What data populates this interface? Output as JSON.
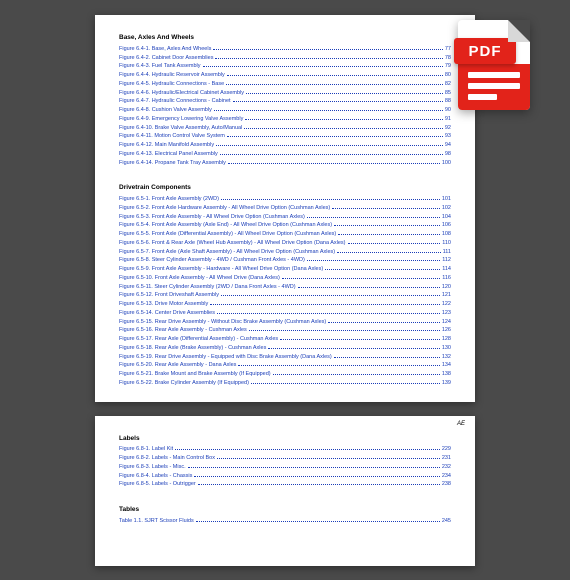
{
  "icon": {
    "label": "PDF"
  },
  "page1": {
    "sections": [
      {
        "heading": "Base, Axles And Wheels",
        "entries": [
          {
            "label": "Figure 6.4-1.  Base, Axles And Wheels",
            "page": "77"
          },
          {
            "label": "Figure 6.4-2.  Cabinet Door Assemblies",
            "page": "78"
          },
          {
            "label": "Figure 6.4-3.  Fuel Tank Assembly",
            "page": "79"
          },
          {
            "label": "Figure 6.4-4.  Hydraulic Reservoir Assembly",
            "page": "80"
          },
          {
            "label": "Figure 6.4-5.  Hydraulic Connections - Base",
            "page": "82"
          },
          {
            "label": "Figure 6.4-6.  Hydraulic/Electrical Cabinet Assembly",
            "page": "85"
          },
          {
            "label": "Figure 6.4-7.  Hydraulic Connections - Cabinet",
            "page": "88"
          },
          {
            "label": "Figure 6.4-8.  Cushion Valve Assembly",
            "page": "90"
          },
          {
            "label": "Figure 6.4-9.  Emergency Lowering Valve Assembly",
            "page": "91"
          },
          {
            "label": "Figure 6.4-10.  Brake Valve Assembly, Auto/Manual",
            "page": "92"
          },
          {
            "label": "Figure 6.4-11.  Motion Control Valve System",
            "page": "93"
          },
          {
            "label": "Figure 6.4-12.  Main Manifold Assembly",
            "page": "94"
          },
          {
            "label": "Figure 6.4-13.  Electrical Panel Assembly",
            "page": "98"
          },
          {
            "label": "Figure 6.4-14.  Propane Tank Tray Assembly",
            "page": "100"
          }
        ]
      },
      {
        "heading": "Drivetrain Components",
        "entries": [
          {
            "label": "Figure 6.5-1.  Front Axle Assembly (2WD)",
            "page": "101"
          },
          {
            "label": "Figure 6.5-2.  Front Axle Hardware Assembly - All Wheel Drive Option  (Cushman Axles)",
            "page": "102"
          },
          {
            "label": "Figure 6.5-3.  Front Axle Assembly - All Wheel Drive Option  (Cushman Axles)",
            "page": "104"
          },
          {
            "label": "Figure 6.5-4.  Front Axle Assembly (Axle End) - All Wheel Drive Option  (Cushman Axles)",
            "page": "106"
          },
          {
            "label": "Figure 6.5-5.  Front Axle  (Differential  Assembly) - All Wheel Drive Option (Cushman Axles)",
            "page": "108"
          },
          {
            "label": "Figure 6.5-6.  Front & Rear Axle (Wheel Hub Assembly) - All Wheel Drive Option  (Dana Axles)",
            "page": "110"
          },
          {
            "label": "Figure 6.5-7.  Front Axle (Axle Shaft  Assembly) - All Wheel Drive Option  (Cushman Axles)",
            "page": "111"
          },
          {
            "label": "Figure 6.5-8.  Steer Cylinder Assembly - 4WD / Cushman Front Axles - 4WD)",
            "page": "112"
          },
          {
            "label": "Figure 6.5-9.  Front Axle Assembly - Hardware - All Wheel Drive Option  (Dana Axles)",
            "page": "114"
          },
          {
            "label": "Figure 6.5-10.  Front Axle Assembly - All Wheel Drive  (Dana Axles)",
            "page": "116"
          },
          {
            "label": "Figure 6.5-11.  Steer Cylinder Assembly  (2WD / Dana Front Axles - 4WD)",
            "page": "120"
          },
          {
            "label": "Figure 6.5-12.  Front Driveshaft Assembly",
            "page": "121"
          },
          {
            "label": "Figure 6.5-13.  Drive Motor Assembly",
            "page": "122"
          },
          {
            "label": "Figure 6.5-14.  Center Drive Assemblies",
            "page": "123"
          },
          {
            "label": "Figure 6.5-15.  Rear Drive Assembly - Without Disc Brake Assembly  (Cushman Axles)",
            "page": "124"
          },
          {
            "label": "Figure 6.5-16.  Rear Axle Assembly - Cushman Axles",
            "page": "126"
          },
          {
            "label": "Figure 6.5-17.  Rear Axle (Differential  Assembly) - Cushman Axles",
            "page": "128"
          },
          {
            "label": "Figure 6.5-18.  Rear Axle (Brake Assembly) - Cushman Axles",
            "page": "130"
          },
          {
            "label": "Figure 6.5-19.  Rear Drive Assembly - Equipped with Disc Brake Assembly  (Dana Axles)",
            "page": "132"
          },
          {
            "label": "Figure 6.5-20.  Rear Axle Assembly - Dana Axles",
            "page": "134"
          },
          {
            "label": "Figure 6.5-21.  Brake Mount and Brake Assembly  (If Equipped)",
            "page": "138"
          },
          {
            "label": "Figure 6.5-22.  Brake Cylinder Assembly  (If Equipped)",
            "page": "139"
          }
        ]
      }
    ]
  },
  "page2": {
    "pageNum": "AE",
    "sections": [
      {
        "heading": "Labels",
        "entries": [
          {
            "label": "Figure 6.8-1.  Label Kit",
            "page": "229"
          },
          {
            "label": "Figure 6.8-2.  Labels - Main Control Box",
            "page": "231"
          },
          {
            "label": "Figure 6.8-3.  Labels - Misc.",
            "page": "232"
          },
          {
            "label": "Figure 6.8-4.  Labels - Chassis",
            "page": "234"
          },
          {
            "label": "Figure 6.8-5.  Labels - Outrigger",
            "page": "238"
          }
        ]
      },
      {
        "heading": "Tables",
        "entries": [
          {
            "label": "Table 1.1.  SJRT Scissor Fluids",
            "page": "245"
          }
        ]
      }
    ]
  }
}
